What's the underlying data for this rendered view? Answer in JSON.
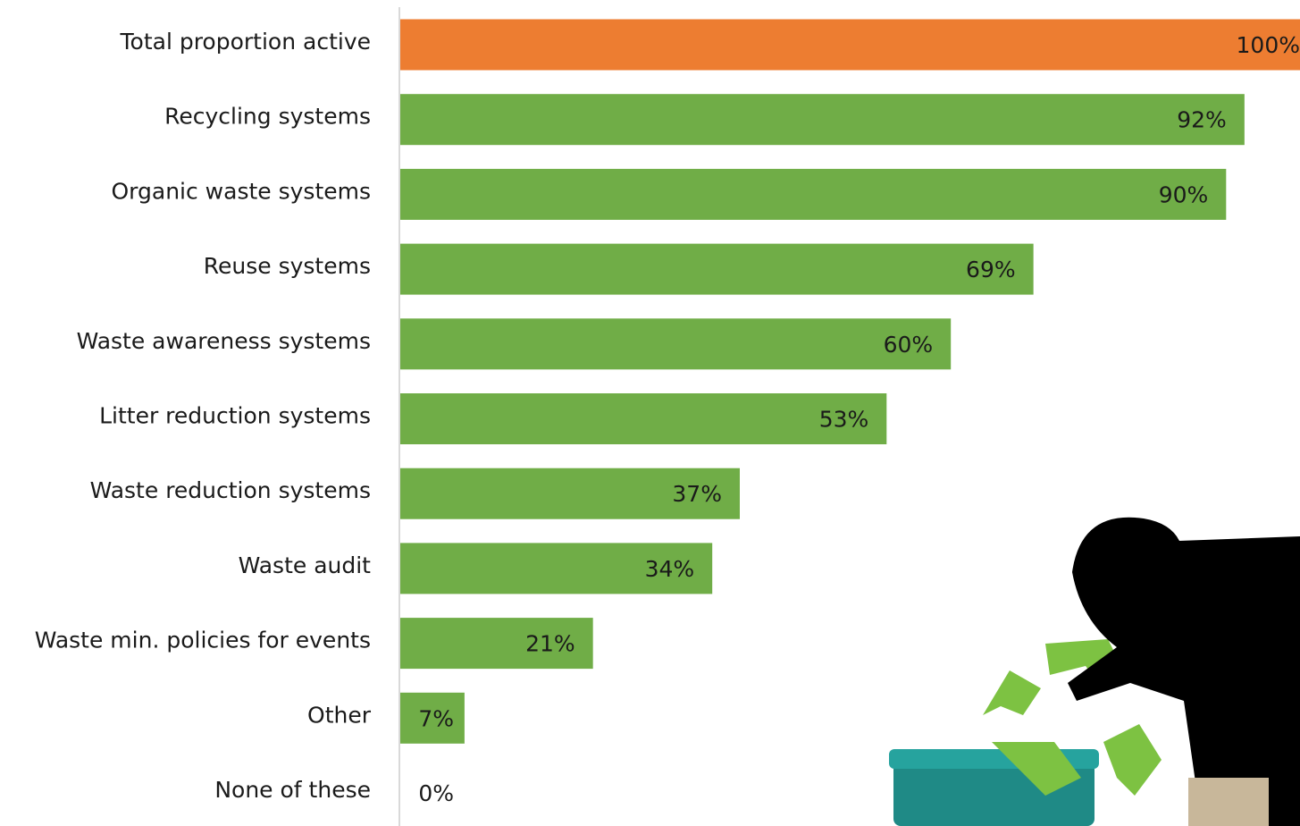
{
  "chart_data": {
    "type": "hbar",
    "categories": [
      "Total proportion active",
      "Recycling systems",
      "Organic waste systems",
      "Reuse systems",
      "Waste awareness systems",
      "Litter reduction systems",
      "Waste reduction systems",
      "Waste audit",
      "Waste min. policies for events",
      "Other",
      "None of these"
    ],
    "values": [
      100,
      92,
      90,
      69,
      60,
      53,
      37,
      34,
      21,
      7,
      0
    ],
    "value_labels": [
      "100%",
      "92%",
      "90%",
      "69%",
      "60%",
      "53%",
      "37%",
      "34%",
      "21%",
      "7%",
      "0%"
    ],
    "colors": [
      "#ed7d31",
      "#70ad47",
      "#70ad47",
      "#70ad47",
      "#70ad47",
      "#70ad47",
      "#70ad47",
      "#70ad47",
      "#70ad47",
      "#70ad47",
      "#70ad47"
    ],
    "xlim": [
      0,
      100
    ]
  }
}
